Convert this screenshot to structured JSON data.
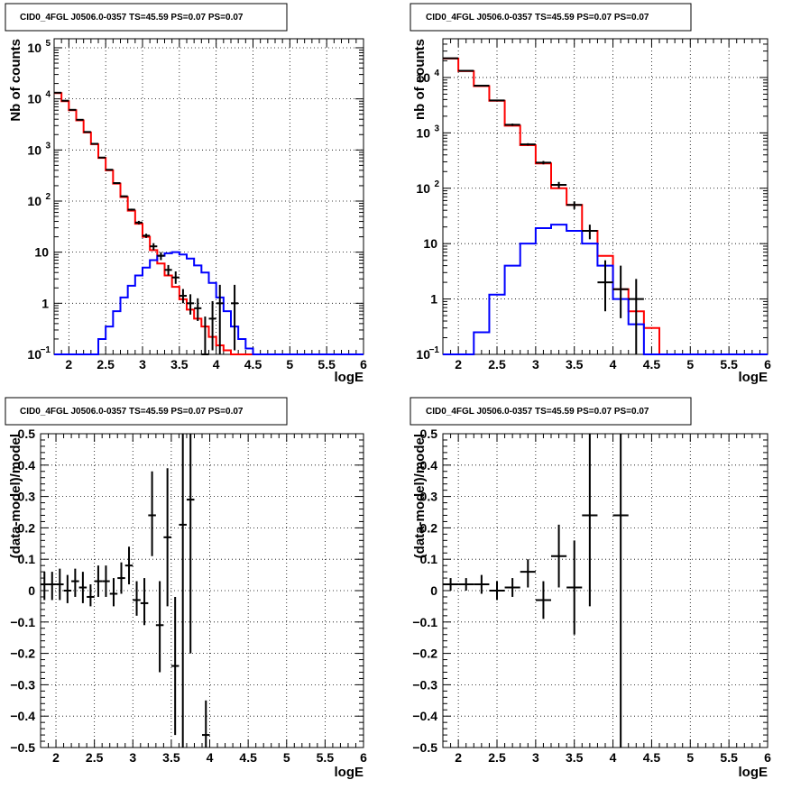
{
  "chart_data": [
    {
      "panel": "top-left",
      "type": "line",
      "title": "CID0_4FGL J0506.0-0357 TS=45.59 PS=0.07 PS=0.07",
      "xlabel": "logE",
      "ylabel": "Nb of counts",
      "xlim": [
        1.8,
        6.0
      ],
      "ylim": [
        0.1,
        150000
      ],
      "yscale": "log",
      "grid": true,
      "x_ticks": [
        {
          "v": 2,
          "t": "2"
        },
        {
          "v": 2.5,
          "t": "2.5"
        },
        {
          "v": 3,
          "t": "3"
        },
        {
          "v": 3.5,
          "t": "3.5"
        },
        {
          "v": 4,
          "t": "4"
        },
        {
          "v": 4.5,
          "t": "4.5"
        },
        {
          "v": 5,
          "t": "5"
        },
        {
          "v": 5.5,
          "t": "5.5"
        },
        {
          "v": 6,
          "t": "6"
        }
      ],
      "y_ticks": [
        {
          "v": 0.1,
          "t": "10",
          "sup": "−1"
        },
        {
          "v": 1,
          "t": "1",
          "sup": ""
        },
        {
          "v": 10,
          "t": "10",
          "sup": ""
        },
        {
          "v": 100,
          "t": "10",
          "sup": "2"
        },
        {
          "v": 1000,
          "t": "10",
          "sup": "3"
        },
        {
          "v": 10000,
          "t": "10",
          "sup": "4"
        },
        {
          "v": 100000,
          "t": "10",
          "sup": "5"
        }
      ],
      "step_series": [
        {
          "color": "#ff0000",
          "edges": [
            1.8,
            1.9,
            2.0,
            2.1,
            2.2,
            2.3,
            2.4,
            2.5,
            2.6,
            2.7,
            2.8,
            2.9,
            3.0,
            3.1,
            3.2,
            3.3,
            3.4,
            3.5,
            3.6,
            3.7,
            3.8,
            3.9,
            4.0,
            4.1,
            4.2,
            4.3,
            4.4,
            4.5,
            6.0
          ],
          "values": [
            13000,
            9000,
            6000,
            3800,
            2200,
            1300,
            700,
            400,
            220,
            120,
            65,
            36,
            20,
            11,
            6,
            3.5,
            2.1,
            1.2,
            0.75,
            0.5,
            0.35,
            0.22,
            0.15,
            0.12,
            0.1,
            0.1,
            0.1,
            0.1
          ]
        },
        {
          "color": "#0000ff",
          "edges": [
            1.8,
            1.9,
            2.0,
            2.1,
            2.2,
            2.3,
            2.4,
            2.5,
            2.6,
            2.7,
            2.8,
            2.9,
            3.0,
            3.1,
            3.2,
            3.3,
            3.4,
            3.5,
            3.6,
            3.7,
            3.8,
            3.9,
            4.0,
            4.1,
            4.2,
            4.3,
            4.4,
            4.5,
            6.0
          ],
          "values": [
            0.1,
            0.1,
            0.1,
            0.1,
            0.1,
            0.1,
            0.2,
            0.35,
            0.7,
            1.3,
            2.2,
            3.5,
            5,
            7,
            8.5,
            9.5,
            10,
            9,
            7.5,
            5.5,
            4,
            2.5,
            1.3,
            0.7,
            0.35,
            0.2,
            0.13,
            0.1
          ]
        }
      ],
      "points": {
        "color": "#000000",
        "xerr": 0.05,
        "x": [
          1.85,
          1.95,
          2.05,
          2.15,
          2.25,
          2.35,
          2.45,
          2.55,
          2.65,
          2.75,
          2.85,
          2.95,
          3.05,
          3.15,
          3.25,
          3.35,
          3.45,
          3.55,
          3.65,
          3.75,
          3.85,
          3.95,
          4.05,
          4.25
        ],
        "y": [
          13200,
          9200,
          6100,
          3900,
          2250,
          1320,
          710,
          410,
          225,
          124,
          68,
          38,
          21,
          13,
          8.5,
          4.5,
          3.2,
          1.4,
          1,
          0.8,
          0.1,
          0.5,
          1,
          1
        ],
        "ylo": [
          12900,
          9000,
          5950,
          3800,
          2200,
          1290,
          690,
          400,
          220,
          120,
          65,
          35,
          19,
          11,
          7,
          3.5,
          2.4,
          1,
          0.6,
          0.45,
          0.1,
          0.12,
          0.1,
          0.12
        ],
        "yhi": [
          13400,
          9400,
          6300,
          4000,
          2300,
          1350,
          730,
          420,
          230,
          128,
          71,
          41,
          23,
          15,
          10,
          5.6,
          4.2,
          1.9,
          1.5,
          1.25,
          0.55,
          1.1,
          2.3,
          2.3
        ]
      }
    },
    {
      "panel": "top-right",
      "type": "line",
      "title": "CID0_4FGL J0506.0-0357 TS=45.59 PS=0.07 PS=0.07",
      "xlabel": "logE",
      "ylabel": "nb of counts",
      "xlim": [
        1.8,
        6.0
      ],
      "ylim": [
        0.1,
        50000
      ],
      "yscale": "log",
      "grid": true,
      "x_ticks": [
        {
          "v": 2,
          "t": "2"
        },
        {
          "v": 2.5,
          "t": "2.5"
        },
        {
          "v": 3,
          "t": "3"
        },
        {
          "v": 3.5,
          "t": "3.5"
        },
        {
          "v": 4,
          "t": "4"
        },
        {
          "v": 4.5,
          "t": "4.5"
        },
        {
          "v": 5,
          "t": "5"
        },
        {
          "v": 5.5,
          "t": "5.5"
        },
        {
          "v": 6,
          "t": "6"
        }
      ],
      "y_ticks": [
        {
          "v": 0.1,
          "t": "10",
          "sup": "−1"
        },
        {
          "v": 1,
          "t": "1",
          "sup": ""
        },
        {
          "v": 10,
          "t": "10",
          "sup": ""
        },
        {
          "v": 100,
          "t": "10",
          "sup": "2"
        },
        {
          "v": 1000,
          "t": "10",
          "sup": "3"
        },
        {
          "v": 10000,
          "t": "10",
          "sup": "4"
        }
      ],
      "step_series": [
        {
          "color": "#ff0000",
          "edges": [
            1.8,
            2.0,
            2.2,
            2.4,
            2.6,
            2.8,
            3.0,
            3.2,
            3.4,
            3.6,
            3.8,
            4.0,
            4.2,
            4.4,
            4.6,
            6.0
          ],
          "values": [
            22000,
            13000,
            7000,
            3800,
            1350,
            600,
            280,
            100,
            50,
            17,
            6,
            1.5,
            0.6,
            0.3,
            0.1
          ]
        },
        {
          "color": "#0000ff",
          "edges": [
            1.8,
            2.0,
            2.2,
            2.4,
            2.6,
            2.8,
            3.0,
            3.2,
            3.4,
            3.6,
            3.8,
            4.0,
            4.2,
            4.4,
            4.6,
            6.0
          ],
          "values": [
            0.1,
            0.1,
            0.25,
            1.2,
            4,
            10,
            19,
            22,
            17,
            10,
            4,
            1,
            0.35,
            0.1,
            0.1
          ]
        }
      ],
      "points": {
        "color": "#000000",
        "xerr": 0.1,
        "x": [
          1.9,
          2.1,
          2.3,
          2.5,
          2.7,
          2.9,
          3.1,
          3.3,
          3.5,
          3.7,
          3.9,
          4.1,
          4.3
        ],
        "y": [
          22200,
          13200,
          7100,
          3850,
          1400,
          620,
          290,
          115,
          50,
          17,
          2,
          1.5,
          1
        ],
        "ylo": [
          21800,
          12900,
          6900,
          3750,
          1330,
          590,
          270,
          100,
          42,
          12,
          0.6,
          0.45,
          0.1
        ],
        "yhi": [
          22600,
          13500,
          7300,
          3950,
          1470,
          650,
          310,
          130,
          58,
          22,
          5,
          4,
          2.3
        ]
      }
    },
    {
      "panel": "bottom-left",
      "type": "scatter",
      "title": "CID0_4FGL J0506.0-0357 TS=45.59 PS=0.07 PS=0.07",
      "xlabel": "logE",
      "ylabel": "(data-model)/model",
      "xlim": [
        1.8,
        6.0
      ],
      "ylim": [
        -0.5,
        0.5
      ],
      "yscale": "linear",
      "grid": true,
      "x_ticks": [
        {
          "v": 2,
          "t": "2"
        },
        {
          "v": 2.5,
          "t": "2.5"
        },
        {
          "v": 3,
          "t": "3"
        },
        {
          "v": 3.5,
          "t": "3.5"
        },
        {
          "v": 4,
          "t": "4"
        },
        {
          "v": 4.5,
          "t": "4.5"
        },
        {
          "v": 5,
          "t": "5"
        },
        {
          "v": 5.5,
          "t": "5.5"
        },
        {
          "v": 6,
          "t": "6"
        }
      ],
      "y_ticks": [
        {
          "v": -0.5,
          "t": "−0.5"
        },
        {
          "v": -0.4,
          "t": "−0.4"
        },
        {
          "v": -0.3,
          "t": "−0.3"
        },
        {
          "v": -0.2,
          "t": "−0.2"
        },
        {
          "v": -0.1,
          "t": "−0.1"
        },
        {
          "v": 0,
          "t": "0"
        },
        {
          "v": 0.1,
          "t": "0.1"
        },
        {
          "v": 0.2,
          "t": "0.2"
        },
        {
          "v": 0.3,
          "t": "0.3"
        },
        {
          "v": 0.4,
          "t": "0.4"
        },
        {
          "v": 0.5,
          "t": "0.5"
        }
      ],
      "points": {
        "color": "#000000",
        "xerr": 0.05,
        "x": [
          1.85,
          1.95,
          2.05,
          2.15,
          2.25,
          2.35,
          2.45,
          2.55,
          2.65,
          2.75,
          2.85,
          2.95,
          3.05,
          3.15,
          3.25,
          3.35,
          3.45,
          3.55,
          3.65,
          3.75,
          3.95
        ],
        "y": [
          0.02,
          0.02,
          0.02,
          0.0,
          0.03,
          0.01,
          -0.02,
          0.03,
          0.03,
          -0.01,
          0.04,
          0.08,
          -0.03,
          -0.04,
          0.24,
          -0.11,
          0.17,
          -0.24,
          0.21,
          0.29,
          -0.46
        ],
        "ylo": [
          -0.03,
          -0.03,
          -0.03,
          -0.04,
          -0.02,
          -0.04,
          -0.05,
          -0.02,
          -0.02,
          -0.05,
          -0.01,
          0.02,
          -0.08,
          -0.11,
          0.11,
          -0.26,
          -0.05,
          -0.46,
          -0.5,
          -0.2,
          -0.5
        ],
        "yhi": [
          0.06,
          0.06,
          0.07,
          0.05,
          0.07,
          0.06,
          0.02,
          0.08,
          0.08,
          0.04,
          0.09,
          0.14,
          0.03,
          0.04,
          0.38,
          0.03,
          0.39,
          -0.02,
          0.5,
          0.5,
          -0.35
        ]
      }
    },
    {
      "panel": "bottom-right",
      "type": "scatter",
      "title": "CID0_4FGL J0506.0-0357 TS=45.59 PS=0.07 PS=0.07",
      "xlabel": "logE",
      "ylabel": "(data-model)/model",
      "xlim": [
        1.8,
        6.0
      ],
      "ylim": [
        -0.5,
        0.5
      ],
      "yscale": "linear",
      "grid": true,
      "x_ticks": [
        {
          "v": 2,
          "t": "2"
        },
        {
          "v": 2.5,
          "t": "2.5"
        },
        {
          "v": 3,
          "t": "3"
        },
        {
          "v": 3.5,
          "t": "3.5"
        },
        {
          "v": 4,
          "t": "4"
        },
        {
          "v": 4.5,
          "t": "4.5"
        },
        {
          "v": 5,
          "t": "5"
        },
        {
          "v": 5.5,
          "t": "5.5"
        },
        {
          "v": 6,
          "t": "6"
        }
      ],
      "y_ticks": [
        {
          "v": -0.5,
          "t": "−0.5"
        },
        {
          "v": -0.4,
          "t": "−0.4"
        },
        {
          "v": -0.3,
          "t": "−0.3"
        },
        {
          "v": -0.2,
          "t": "−0.2"
        },
        {
          "v": -0.1,
          "t": "−0.1"
        },
        {
          "v": 0,
          "t": "0"
        },
        {
          "v": 0.1,
          "t": "0.1"
        },
        {
          "v": 0.2,
          "t": "0.2"
        },
        {
          "v": 0.3,
          "t": "0.3"
        },
        {
          "v": 0.4,
          "t": "0.4"
        },
        {
          "v": 0.5,
          "t": "0.5"
        }
      ],
      "points": {
        "color": "#000000",
        "xerr": 0.1,
        "x": [
          1.9,
          2.1,
          2.3,
          2.5,
          2.7,
          2.9,
          3.1,
          3.3,
          3.5,
          3.7,
          4.1
        ],
        "y": [
          0.02,
          0.02,
          0.02,
          0.0,
          0.01,
          0.06,
          -0.03,
          0.11,
          0.01,
          0.24,
          0.24
        ],
        "ylo": [
          0.0,
          0.0,
          -0.01,
          -0.03,
          -0.02,
          0.01,
          -0.09,
          0.01,
          -0.14,
          -0.05,
          -0.5
        ],
        "yhi": [
          0.04,
          0.04,
          0.05,
          0.03,
          0.04,
          0.1,
          0.03,
          0.21,
          0.16,
          0.5,
          0.5
        ]
      }
    }
  ]
}
